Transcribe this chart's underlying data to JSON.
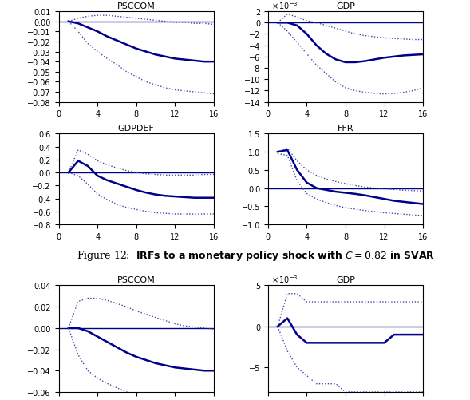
{
  "figure_caption": "Figure 12: IRFs to a monetary policy shock with $C = 0.82$ in SVAR",
  "x": [
    1,
    2,
    3,
    4,
    5,
    6,
    7,
    8,
    9,
    10,
    11,
    12,
    13,
    14,
    15,
    16
  ],
  "subplots": [
    {
      "title": "PSCCOM",
      "ylim": [
        -0.08,
        0.01
      ],
      "yticks": [
        -0.08,
        -0.07,
        -0.06,
        -0.05,
        -0.04,
        -0.03,
        -0.02,
        -0.01,
        0,
        0.01
      ],
      "xticks": [
        0,
        4,
        8,
        12,
        16
      ],
      "xlim": [
        0,
        16
      ],
      "median": [
        0,
        -0.002,
        -0.006,
        -0.01,
        -0.015,
        -0.019,
        -0.023,
        -0.027,
        -0.03,
        -0.033,
        -0.035,
        -0.037,
        -0.038,
        -0.039,
        -0.04,
        -0.04
      ],
      "upper_ci": [
        0,
        0.003,
        0.005,
        0.006,
        0.006,
        0.005,
        0.004,
        0.003,
        0.002,
        0.001,
        0.0,
        -0.001,
        -0.001,
        -0.002,
        -0.002,
        -0.003
      ],
      "lower_ci": [
        0,
        -0.01,
        -0.022,
        -0.03,
        -0.037,
        -0.043,
        -0.05,
        -0.055,
        -0.06,
        -0.063,
        -0.066,
        -0.068,
        -0.069,
        -0.07,
        -0.071,
        -0.072
      ],
      "scale": 1,
      "scale_label": null
    },
    {
      "title": "GDP",
      "ylim": [
        -14,
        2
      ],
      "yticks": [
        -14,
        -12,
        -10,
        -8,
        -6,
        -4,
        -2,
        0,
        2
      ],
      "xticks": [
        0,
        4,
        8,
        12,
        16
      ],
      "xlim": [
        0,
        16
      ],
      "median": [
        0,
        0.0,
        -0.5,
        -2.0,
        -4.0,
        -5.5,
        -6.5,
        -7.0,
        -7.0,
        -6.8,
        -6.5,
        -6.2,
        -6.0,
        -5.8,
        -5.7,
        -5.6
      ],
      "upper_ci": [
        0,
        1.5,
        1.0,
        0.3,
        0.0,
        -0.5,
        -1.0,
        -1.5,
        -2.0,
        -2.3,
        -2.5,
        -2.7,
        -2.8,
        -2.9,
        -3.0,
        -3.0
      ],
      "lower_ci": [
        0,
        -1.5,
        -3.5,
        -5.5,
        -7.5,
        -9.0,
        -10.5,
        -11.5,
        -12.0,
        -12.3,
        -12.5,
        -12.6,
        -12.5,
        -12.3,
        -12.0,
        -11.5
      ],
      "scale": 1000,
      "scale_label": "x 10^{-3}"
    },
    {
      "title": "GDPDEF",
      "ylim": [
        -0.8,
        0.6
      ],
      "yticks": [
        -0.8,
        -0.6,
        -0.4,
        -0.2,
        0,
        0.2,
        0.4,
        0.6
      ],
      "xticks": [
        0,
        4,
        8,
        12,
        16
      ],
      "xlim": [
        0,
        16
      ],
      "median": [
        0,
        0.18,
        0.1,
        -0.05,
        -0.12,
        -0.17,
        -0.22,
        -0.27,
        -0.31,
        -0.34,
        -0.36,
        -0.37,
        -0.38,
        -0.39,
        -0.39,
        -0.39
      ],
      "upper_ci": [
        0,
        0.35,
        0.28,
        0.18,
        0.12,
        0.07,
        0.03,
        0.0,
        -0.02,
        -0.03,
        -0.04,
        -0.04,
        -0.04,
        -0.04,
        -0.03,
        -0.03
      ],
      "lower_ci": [
        0,
        -0.05,
        -0.18,
        -0.33,
        -0.42,
        -0.49,
        -0.54,
        -0.57,
        -0.6,
        -0.62,
        -0.63,
        -0.64,
        -0.64,
        -0.64,
        -0.64,
        -0.64
      ],
      "scale": 1,
      "scale_label": null
    },
    {
      "title": "FFR",
      "ylim": [
        -1,
        1.5
      ],
      "yticks": [
        -1,
        -0.5,
        0,
        0.5,
        1,
        1.5
      ],
      "xticks": [
        0,
        4,
        8,
        12,
        16
      ],
      "xlim": [
        0,
        16
      ],
      "median": [
        1.0,
        1.05,
        0.5,
        0.15,
        0.0,
        -0.05,
        -0.1,
        -0.13,
        -0.16,
        -0.2,
        -0.25,
        -0.3,
        -0.35,
        -0.38,
        -0.41,
        -0.44
      ],
      "upper_ci": [
        1.0,
        1.1,
        0.75,
        0.5,
        0.35,
        0.25,
        0.18,
        0.12,
        0.07,
        0.03,
        0.0,
        -0.02,
        -0.04,
        -0.06,
        -0.07,
        -0.08
      ],
      "lower_ci": [
        0.95,
        0.9,
        0.2,
        -0.15,
        -0.3,
        -0.4,
        -0.48,
        -0.54,
        -0.58,
        -0.62,
        -0.65,
        -0.68,
        -0.7,
        -0.72,
        -0.74,
        -0.76
      ],
      "scale": 1,
      "scale_label": null
    }
  ],
  "line_color": "#00008B",
  "dotted_color": "#4444AA",
  "zero_color": "#00008B",
  "figure_bg": "#FFFFFF",
  "axes_bg": "#FFFFFF",
  "caption_fontsize": 10,
  "subplot2_caption": "PSCCOM",
  "subplot2_median": [
    0,
    0.0,
    -0.003,
    -0.008,
    -0.013,
    -0.018,
    -0.023,
    -0.027,
    -0.03,
    -0.033,
    -0.035,
    -0.037,
    -0.038,
    -0.039,
    -0.04,
    -0.04
  ],
  "subplot2_upper_ci": [
    0,
    0.025,
    0.028,
    0.028,
    0.026,
    0.023,
    0.02,
    0.016,
    0.013,
    0.01,
    0.007,
    0.004,
    0.002,
    0.001,
    0.0,
    -0.001
  ],
  "subplot2_lower_ci": [
    0,
    -0.025,
    -0.04,
    -0.047,
    -0.052,
    -0.056,
    -0.06,
    -0.063,
    -0.064,
    -0.066,
    -0.067,
    -0.068,
    -0.069,
    -0.069,
    -0.069,
    -0.07
  ],
  "subplot2_gdp_median": [
    0,
    0.001,
    -0.001,
    -0.002,
    -0.002,
    -0.002,
    -0.002,
    -0.002,
    -0.002,
    -0.002,
    -0.002,
    -0.002,
    -0.001,
    -0.001,
    -0.001,
    -0.001
  ],
  "subplot2_gdp_upper_ci": [
    0,
    0.004,
    0.004,
    0.003,
    0.003,
    0.003,
    0.003,
    0.003,
    0.003,
    0.003,
    0.003,
    0.003,
    0.003,
    0.003,
    0.003,
    0.003
  ],
  "subplot2_gdp_lower_ci": [
    0,
    -0.003,
    -0.005,
    -0.006,
    -0.007,
    -0.007,
    -0.007,
    -0.008,
    -0.008,
    -0.008,
    -0.008,
    -0.008,
    -0.008,
    -0.008,
    -0.008,
    -0.008
  ]
}
